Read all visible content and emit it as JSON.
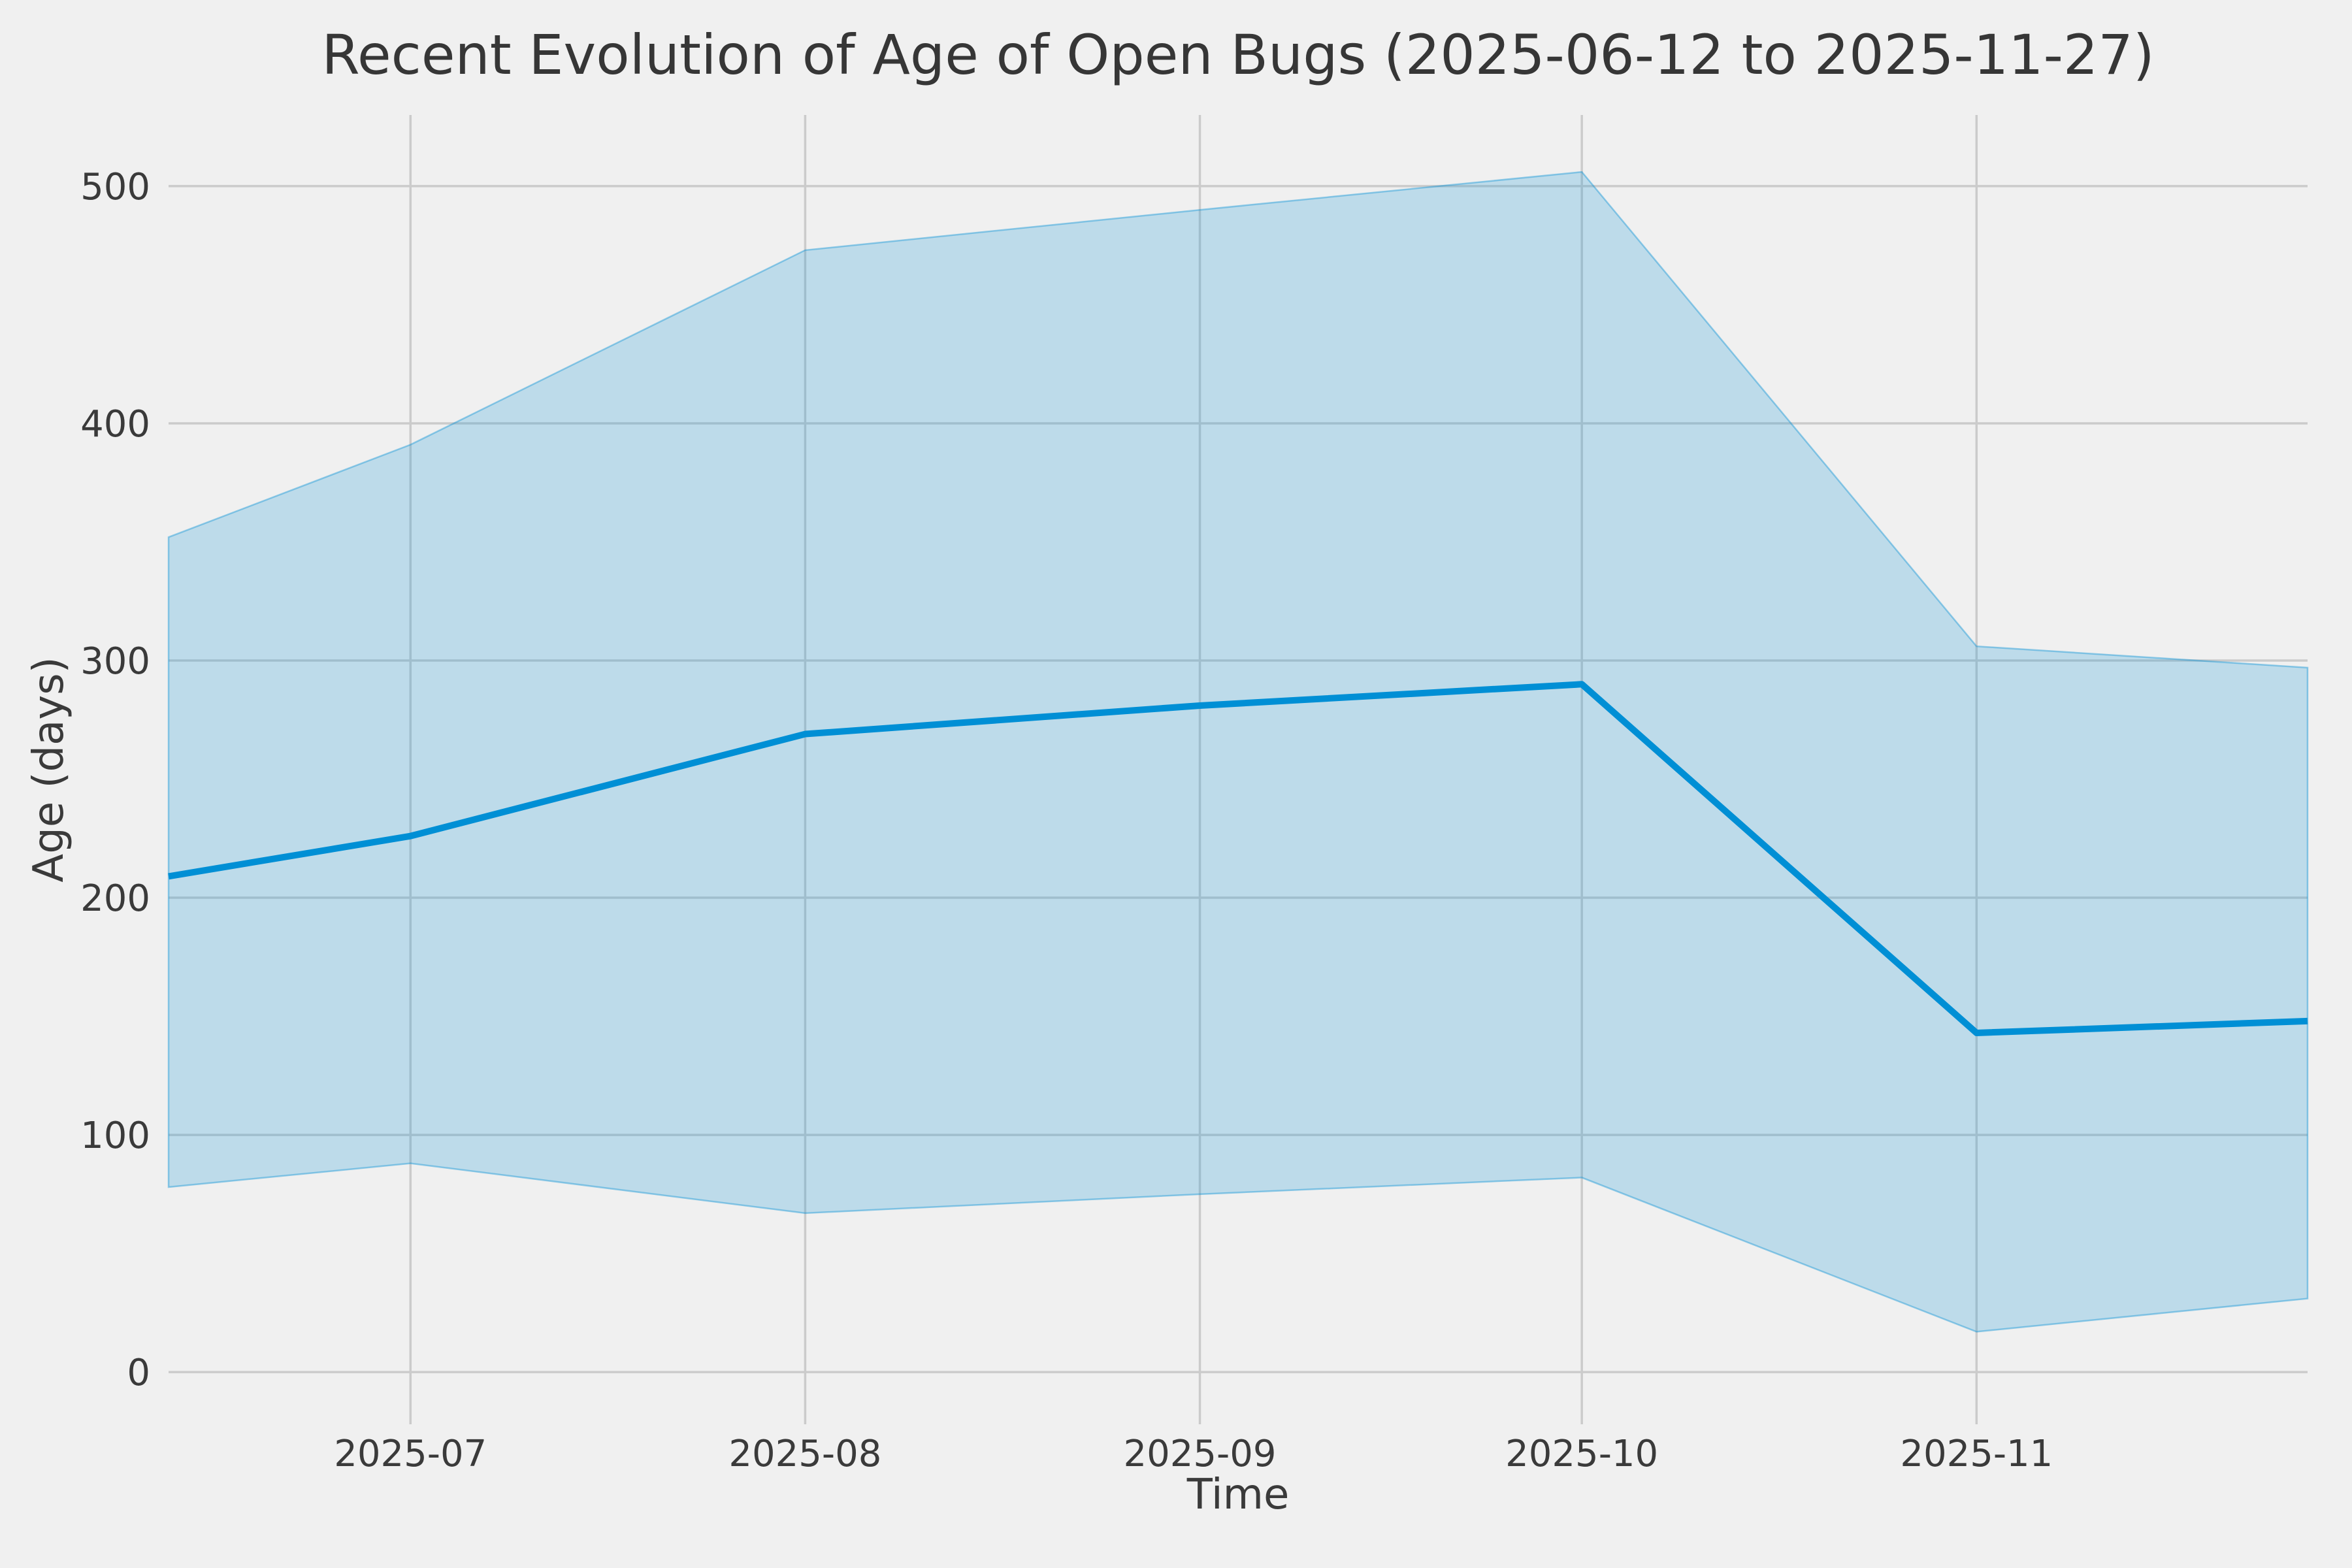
{
  "chart": {
    "title": "Recent Evolution of Age of Open Bugs (2025-06-12 to 2025-11-27)",
    "xlabel": "Time",
    "ylabel": "Age (days)"
  },
  "chart_data": {
    "type": "line",
    "title": "Recent Evolution of Age of Open Bugs (2025-06-12 to 2025-11-27)",
    "xlabel": "Time",
    "ylabel": "Age (days)",
    "date_range": [
      "2025-06-12",
      "2025-11-27"
    ],
    "x_dates": [
      "2025-06-12",
      "2025-07-01",
      "2025-08-01",
      "2025-09-01",
      "2025-10-01",
      "2025-11-01",
      "2025-11-27"
    ],
    "x_day_offsets": [
      0,
      19,
      50,
      81,
      111,
      142,
      168
    ],
    "series": [
      {
        "name": "age central line",
        "role": "line",
        "values": [
          209,
          226,
          269,
          281,
          290,
          143,
          148
        ]
      },
      {
        "name": "band upper bound",
        "role": "band-upper",
        "values": [
          352,
          391,
          473,
          490,
          506,
          306,
          297
        ]
      },
      {
        "name": "band lower bound",
        "role": "band-lower",
        "values": [
          78,
          88,
          67,
          75,
          82,
          17,
          31
        ]
      }
    ],
    "xticks": [
      {
        "label": "2025-07",
        "t": 19
      },
      {
        "label": "2025-08",
        "t": 50
      },
      {
        "label": "2025-09",
        "t": 81
      },
      {
        "label": "2025-10",
        "t": 111
      },
      {
        "label": "2025-11",
        "t": 142
      }
    ],
    "yticks": [
      0,
      100,
      200,
      300,
      400,
      500
    ],
    "ylim": [
      -22,
      530
    ],
    "xlim_days": [
      0,
      168
    ],
    "grid": true,
    "legend": false,
    "colors": {
      "background": "#f0f0f0",
      "grid": "#cbcbcb",
      "line": "#008fd5",
      "band": "#008fd5",
      "band_alpha": 0.21,
      "band_edge_alpha": 0.4,
      "tick_text": "#3a3a3a",
      "title_text": "#363636"
    }
  }
}
